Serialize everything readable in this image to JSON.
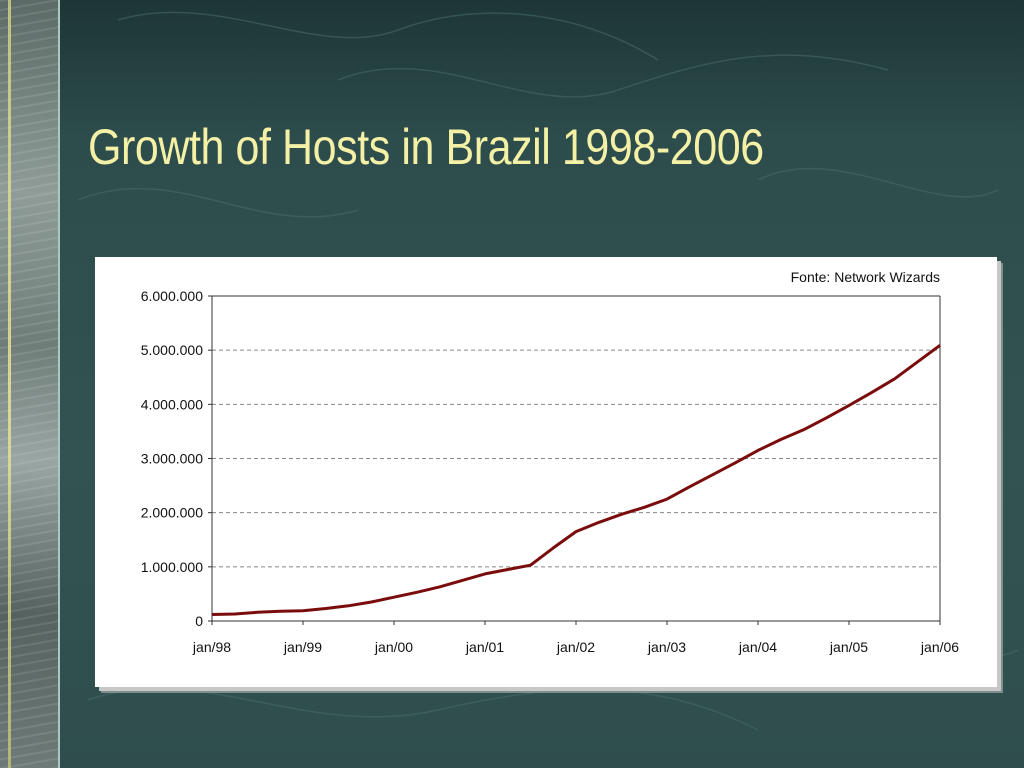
{
  "slide": {
    "title": "Growth of Hosts in Brazil 1998-2006"
  },
  "chart_data": {
    "type": "line",
    "source_note": "Fonte: Network Wizards",
    "xlabel": "",
    "ylabel": "",
    "x_ticks": [
      "jan/98",
      "jan/99",
      "jan/00",
      "jan/01",
      "jan/02",
      "jan/03",
      "jan/04",
      "jan/05",
      "jan/06"
    ],
    "y_ticks": [
      "0",
      "1.000.000",
      "2.000.000",
      "3.000.000",
      "4.000.000",
      "5.000.000",
      "6.000.000"
    ],
    "ylim": [
      0,
      6000000
    ],
    "xlim": [
      1998.0,
      2006.0
    ],
    "grid": "horizontal-dashed",
    "series": [
      {
        "color": "#7a0c0c",
        "x": [
          1998.0,
          1998.25,
          1998.5,
          1998.75,
          1999.0,
          1999.25,
          1999.5,
          1999.75,
          2000.0,
          2000.25,
          2000.5,
          2000.75,
          2001.0,
          2001.25,
          2001.5,
          2001.75,
          2002.0,
          2002.25,
          2002.5,
          2002.75,
          2003.0,
          2003.25,
          2003.5,
          2003.75,
          2004.0,
          2004.25,
          2004.5,
          2004.75,
          2005.0,
          2005.25,
          2005.5,
          2005.75,
          2006.0
        ],
        "values": [
          120000,
          130000,
          160000,
          180000,
          190000,
          230000,
          280000,
          350000,
          440000,
          530000,
          630000,
          750000,
          870000,
          950000,
          1030000,
          1350000,
          1650000,
          1820000,
          1970000,
          2100000,
          2250000,
          2480000,
          2700000,
          2920000,
          3150000,
          3350000,
          3530000,
          3750000,
          3980000,
          4220000,
          4470000,
          4780000,
          5090000
        ]
      }
    ]
  }
}
